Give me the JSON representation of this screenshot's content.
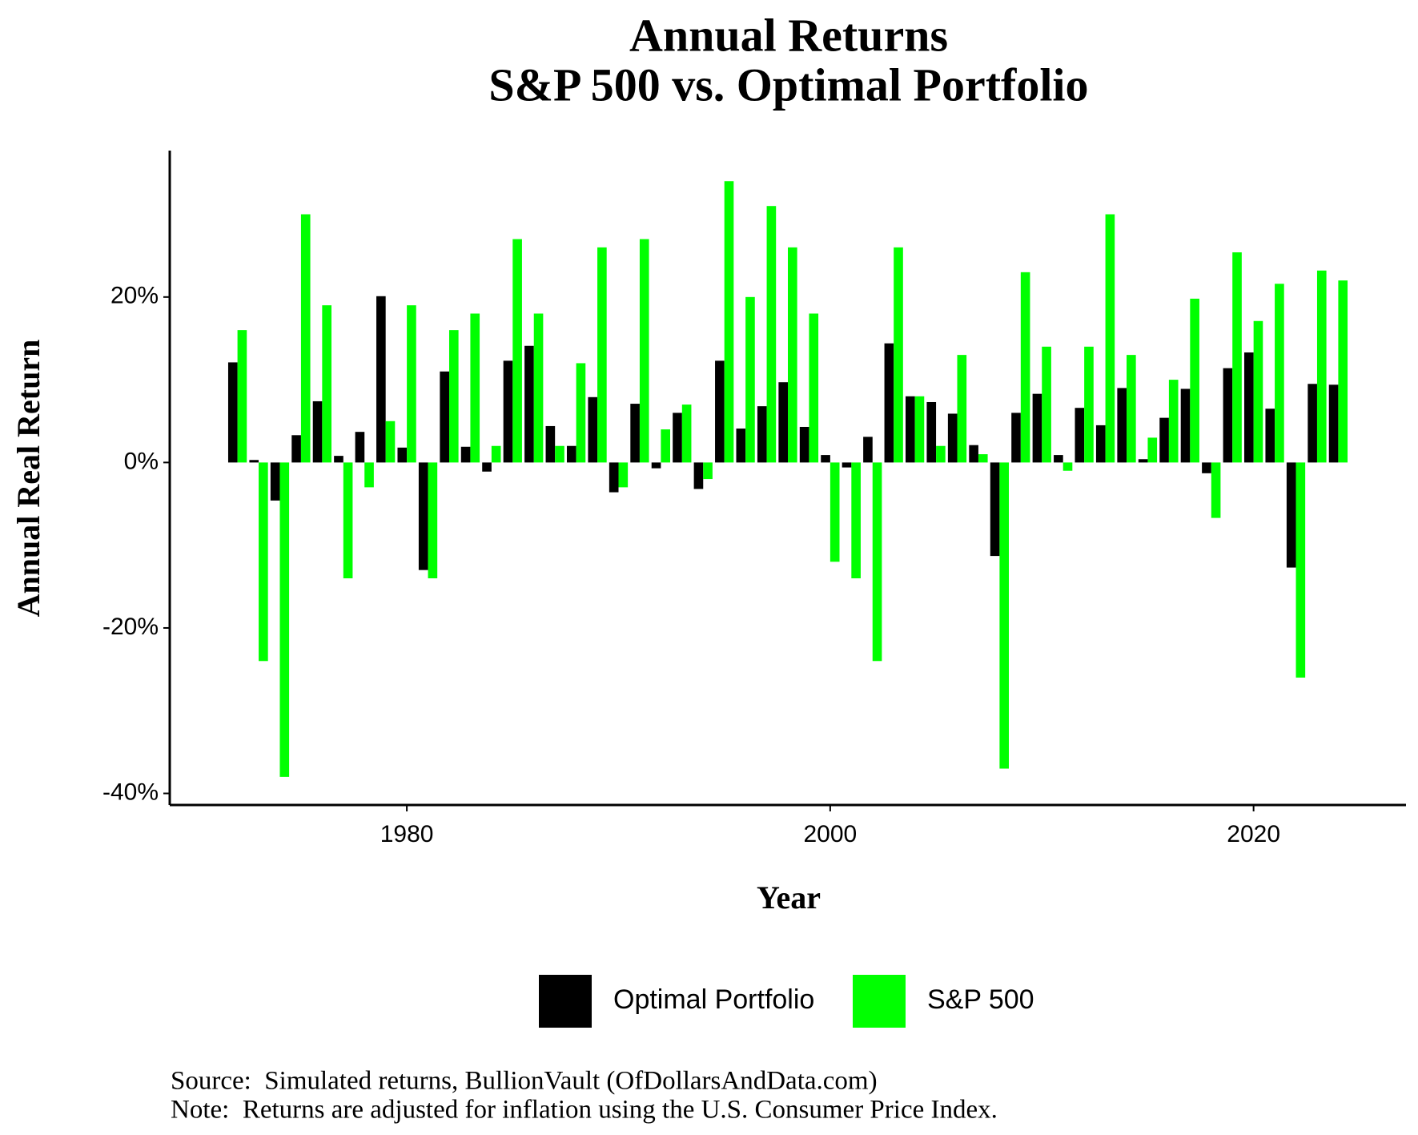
{
  "chart_data": {
    "type": "bar",
    "title": "Annual Returns",
    "subtitle": "S&P 500 vs. Optimal Portfolio",
    "x_label": "Year",
    "y_label": "Annual Real Return",
    "source": "Source:  Simulated returns, BullionVault (OfDollarsAndData.com)",
    "note": "Note:  Returns are adjusted for inflation using the U.S. Consumer Price Index.",
    "x": [
      1972,
      1973,
      1974,
      1975,
      1976,
      1977,
      1978,
      1979,
      1980,
      1981,
      1982,
      1983,
      1984,
      1985,
      1986,
      1987,
      1988,
      1989,
      1990,
      1991,
      1992,
      1993,
      1994,
      1995,
      1996,
      1997,
      1998,
      1999,
      2000,
      2001,
      2002,
      2003,
      2004,
      2005,
      2006,
      2007,
      2008,
      2009,
      2010,
      2011,
      2012,
      2013,
      2014,
      2015,
      2016,
      2017,
      2018,
      2019,
      2020,
      2021,
      2022,
      2023,
      2024
    ],
    "series": [
      {
        "name": "Optimal Portfolio",
        "color": "#000000",
        "values": [
          12.1,
          0.3,
          -4.6,
          3.3,
          7.4,
          0.8,
          3.7,
          20.1,
          1.8,
          -13,
          11,
          1.9,
          -1.1,
          12.3,
          14.1,
          4.4,
          2,
          7.9,
          -3.6,
          7.1,
          -0.7,
          6,
          -3.2,
          12.3,
          4.1,
          6.8,
          9.7,
          4.3,
          0.9,
          -0.6,
          3.1,
          14.4,
          8,
          7.3,
          5.9,
          2.1,
          -11.3,
          6,
          8.3,
          0.9,
          6.6,
          4.5,
          9,
          0.4,
          5.4,
          8.9,
          -1.3,
          11.4,
          13.3,
          6.5,
          -12.7,
          9.5,
          9.4
        ]
      },
      {
        "name": "S&P 500",
        "color": "#00ff00",
        "values": [
          16,
          -24,
          -38,
          30,
          19,
          -14,
          -3,
          5,
          19,
          -14,
          16,
          18,
          2,
          27,
          18,
          2,
          12,
          26,
          -3,
          27,
          4,
          7,
          -2,
          34,
          20,
          31,
          26,
          18,
          -12,
          -14,
          -24,
          26,
          8,
          2,
          13,
          1,
          -37,
          23,
          14,
          -1,
          14,
          30,
          13,
          3,
          10,
          19.8,
          -6.7,
          25.4,
          17.1,
          21.6,
          -26,
          23.2,
          22
        ]
      }
    ],
    "xlim": [
      1968.8,
      2027.2
    ],
    "xticks": [
      1980,
      2000,
      2020
    ],
    "ylim": [
      -41.4,
      37.7
    ],
    "yticks": [
      {
        "value": -40,
        "label": "-40%"
      },
      {
        "value": -20,
        "label": "-20%"
      },
      {
        "value": 0,
        "label": "0%"
      },
      {
        "value": 20,
        "label": "20%"
      }
    ],
    "grid": false,
    "legend": "bottom"
  }
}
